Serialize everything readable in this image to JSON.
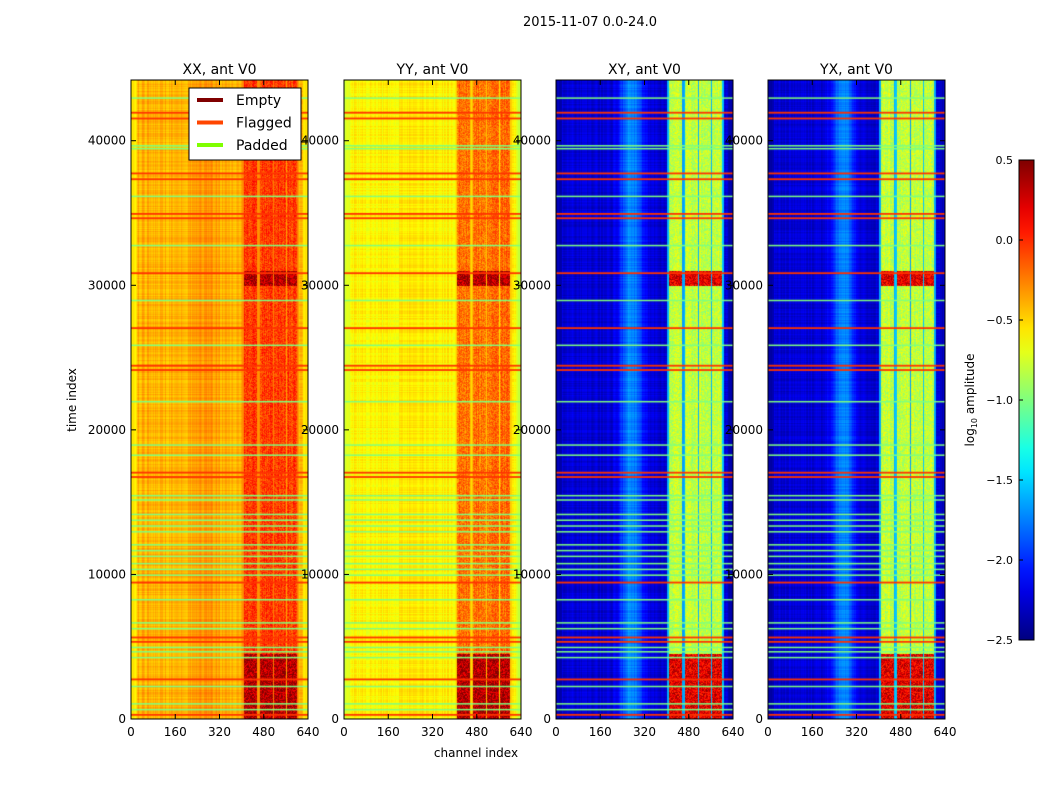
{
  "chart_data": {
    "type": "heatmap",
    "title": "2015-11-07 0.0-24.0",
    "xlabel": "channel index",
    "ylabel": "time index",
    "xlim": [
      0,
      640
    ],
    "ylim": [
      0,
      44200
    ],
    "xticks": [
      0,
      160,
      320,
      480,
      640
    ],
    "yticks": [
      0,
      10000,
      20000,
      30000,
      40000
    ],
    "colorbar": {
      "label_main": "log",
      "label_sub": "10",
      "label_rest": " amplitude",
      "colormap": "jet",
      "range": [
        -2.5,
        0.5
      ],
      "ticks": [
        0.5,
        0.0,
        -0.5,
        -1.0,
        -1.5,
        -2.0,
        -2.5
      ],
      "tick_labels": [
        "0.5",
        "0.0",
        "−0.5",
        "−1.0",
        "−1.5",
        "−2.0",
        "−2.5"
      ]
    },
    "legend": {
      "placement": "upper-right of first panel",
      "entries": [
        {
          "label": "Empty",
          "color": "#800000"
        },
        {
          "label": "Flagged",
          "color": "#ff4500"
        },
        {
          "label": "Padded",
          "color": "#7fff00"
        }
      ]
    },
    "flagged_times": [
      350,
      2800,
      5400,
      5700,
      9500,
      16800,
      17100,
      24200,
      24500,
      27100,
      30900,
      34700,
      35000,
      37400,
      37800,
      41600,
      42000
    ],
    "padded_times": [
      700,
      1100,
      2300,
      4300,
      4700,
      5000,
      6300,
      6700,
      8300,
      10000,
      10400,
      10800,
      11300,
      11700,
      12100,
      13000,
      13400,
      13800,
      14200,
      15200,
      15500,
      18300,
      19000,
      22000,
      25900,
      29000,
      32800,
      36200,
      39500,
      39700,
      43000
    ],
    "panels": [
      {
        "title": "XX, ant V0",
        "base": -0.4,
        "edge": -0.6,
        "mid_bump": 0.1,
        "band_level": -0.05,
        "band_bottom": 0.35,
        "gaps_level": -0.3
      },
      {
        "title": "YY, ant V0",
        "base": -0.6,
        "edge": -0.75,
        "mid_bump": 0.05,
        "band_level": -0.2,
        "band_bottom": 0.35,
        "gaps_level": -0.5
      },
      {
        "title": "XY, ant V0",
        "base": -2.25,
        "edge": -2.35,
        "mid_bump": 0.55,
        "band_level": -0.8,
        "band_bottom": 0.2,
        "gaps_level": -1.6
      },
      {
        "title": "YX, ant V0",
        "base": -2.25,
        "edge": -2.35,
        "mid_bump": 0.55,
        "band_level": -0.8,
        "band_bottom": 0.2,
        "gaps_level": -1.6
      }
    ],
    "bright_bands_channels": [
      [
        405,
        455
      ],
      [
        463,
        510
      ],
      [
        517,
        557
      ],
      [
        564,
        600
      ]
    ],
    "bright_period_times": [
      [
        0,
        4500
      ],
      [
        30000,
        31000
      ]
    ]
  }
}
